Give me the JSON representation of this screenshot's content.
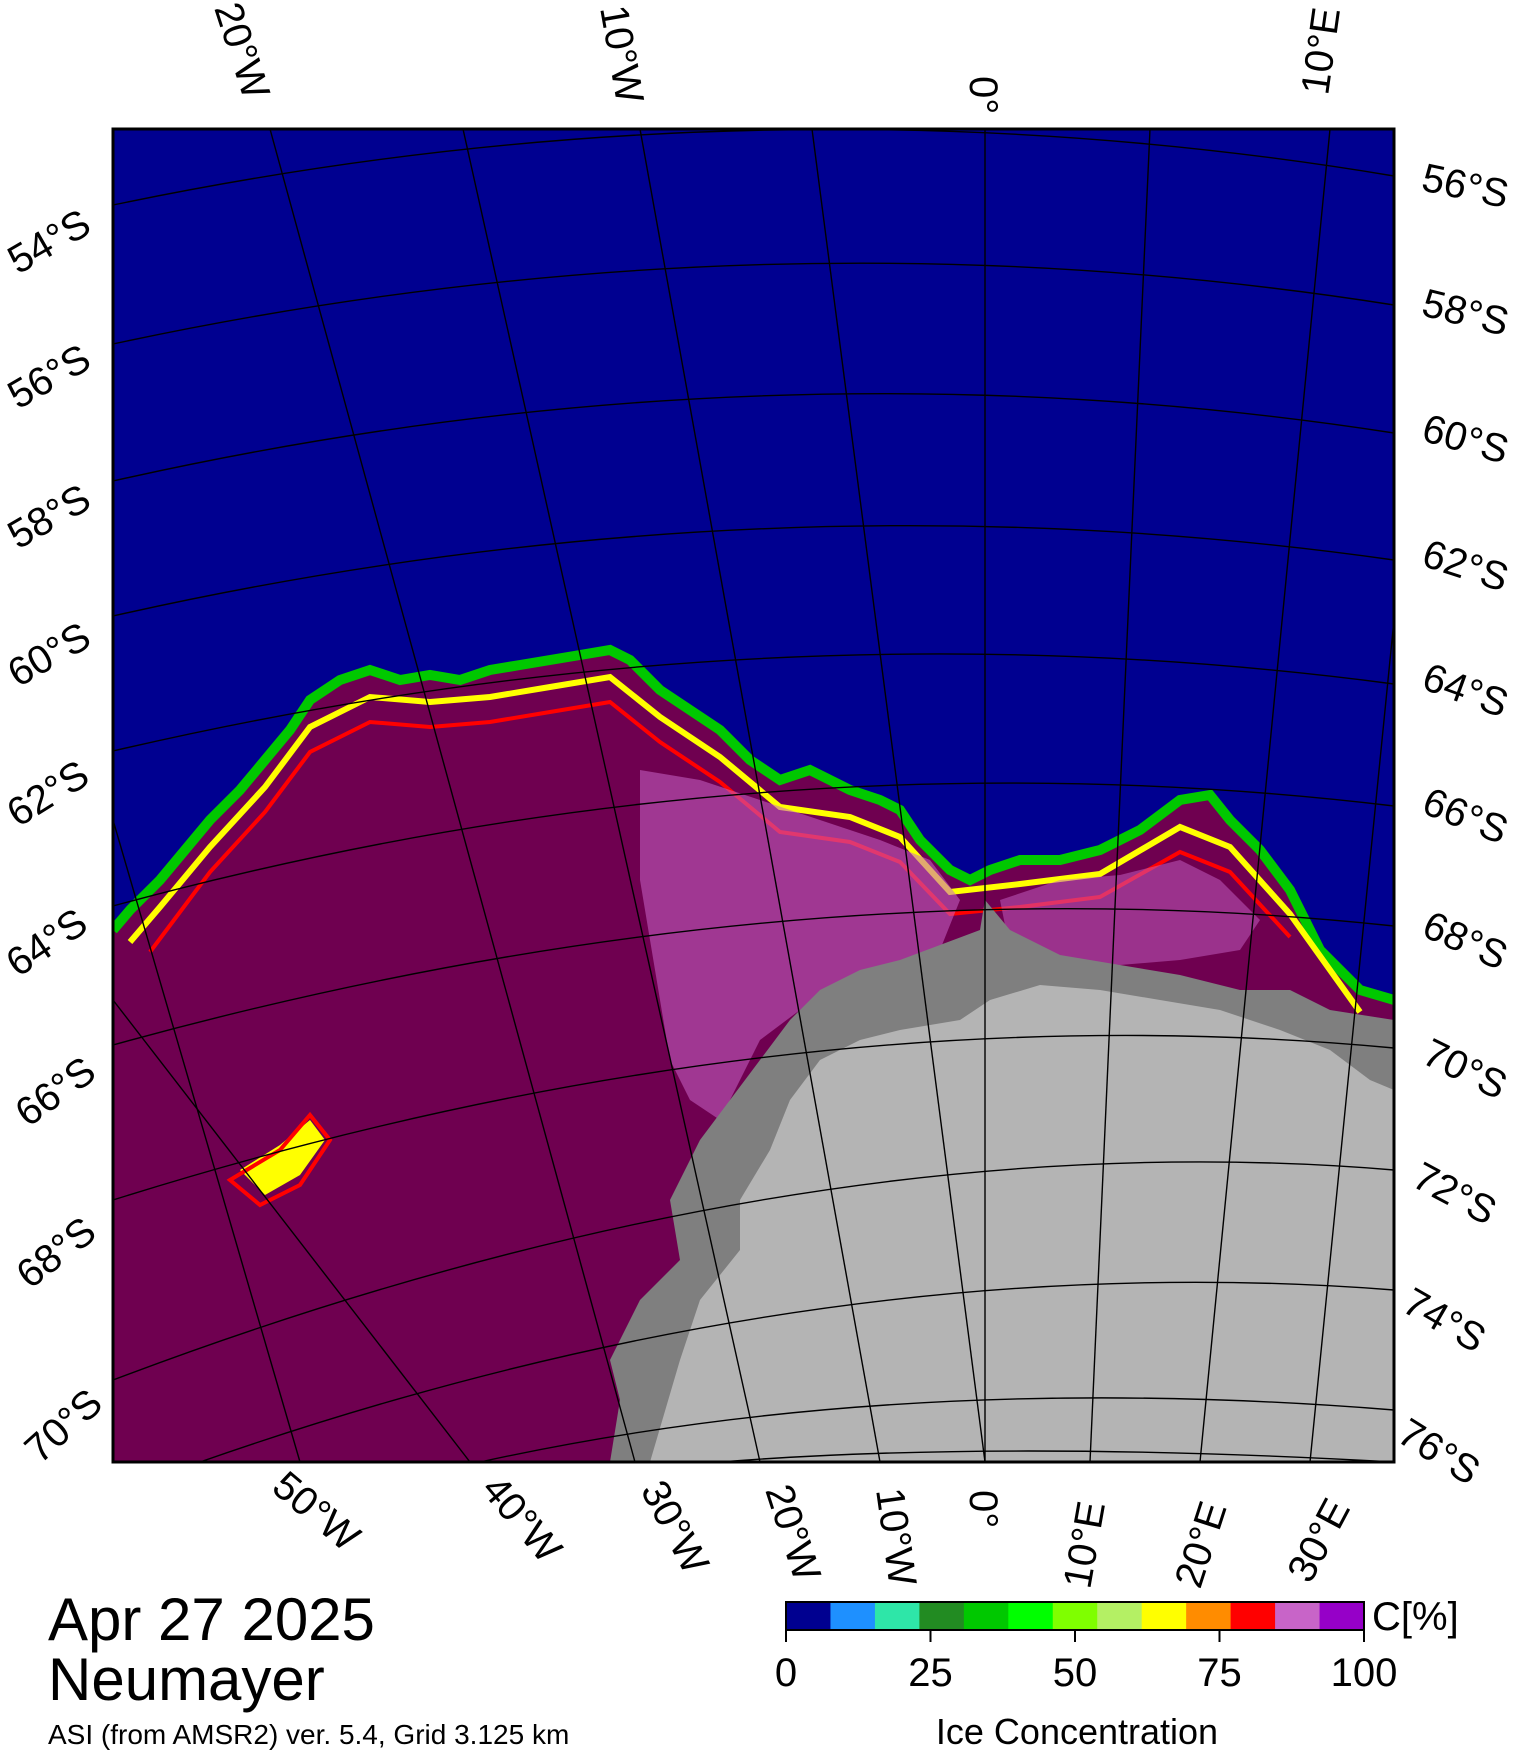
{
  "map": {
    "station": "Neumayer",
    "date": "Apr 27 2025",
    "product": "ASI (from AMSR2) ver. 5.4,  Grid 3.125 km",
    "colors": {
      "open_water": "#000090",
      "pack_ice": "#6f0050",
      "land_shelf": "#7f7f7f",
      "land_interior": "#b4b4b4",
      "graticule": "#000000"
    },
    "top_lon_labels": [
      "20°W",
      "10°W",
      "0°",
      "10°E"
    ],
    "bottom_lon_labels": [
      "50°W",
      "40°W",
      "30°W",
      "20°W",
      "10°W",
      "0°",
      "10°E",
      "20°E",
      "30°E"
    ],
    "left_lat_labels": [
      "54°S",
      "56°S",
      "58°S",
      "60°S",
      "62°S",
      "64°S",
      "66°S",
      "68°S",
      "70°S"
    ],
    "right_lat_labels": [
      "56°S",
      "58°S",
      "60°S",
      "62°S",
      "64°S",
      "66°S",
      "68°S",
      "70°S",
      "72°S",
      "74°S",
      "76°S"
    ]
  },
  "colorbar": {
    "title": "Ice Concentration",
    "unit": "C[%]",
    "tick_labels": [
      "0",
      "25",
      "50",
      "75",
      "100"
    ],
    "colors": [
      "#000090",
      "#1e90ff",
      "#2ee6a8",
      "#228b22",
      "#00c800",
      "#00ff00",
      "#7fff00",
      "#b4f064",
      "#ffff00",
      "#ff8c00",
      "#ff0000",
      "#c864c8",
      "#9600c8"
    ]
  }
}
